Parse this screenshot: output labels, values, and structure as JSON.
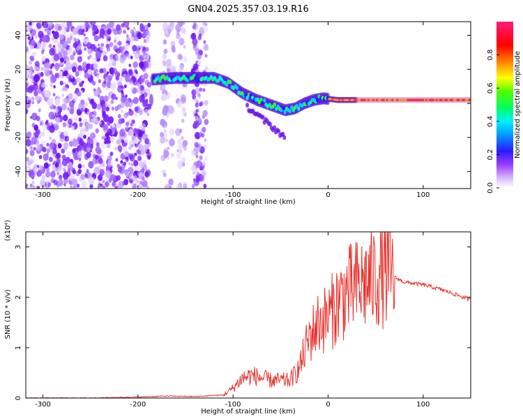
{
  "title": "GN04.2025.357.03.19.R16",
  "colors": {
    "snr_line": "#e8322c",
    "spectral_purple": "#7a1aff",
    "frame": "#000000"
  },
  "chart_data": [
    {
      "type": "heatmap",
      "title": "GN04.2025.357.03.19.R16",
      "xlabel": "Height of straight line (km)",
      "ylabel": "Frequency (Hz)",
      "xlim": [
        -318,
        150
      ],
      "ylim": [
        -50,
        48
      ],
      "xticks": [
        -300,
        -200,
        -100,
        0,
        100
      ],
      "yticks": [
        -40,
        -20,
        0,
        20,
        40
      ],
      "colorbar": {
        "label": "Normalized spectral amplitude",
        "range": [
          0.0,
          1.0
        ],
        "ticks": [
          0.0,
          0.2,
          0.4,
          0.6,
          0.8
        ]
      },
      "ridge": {
        "description": "dominant frequency trace",
        "x": [
          -185,
          -160,
          -140,
          -120,
          -105,
          -90,
          -75,
          -60,
          -45,
          -35,
          -25,
          -15,
          -5,
          10,
          40,
          70,
          100,
          150
        ],
        "y": [
          14,
          15,
          15,
          15,
          12,
          6,
          2,
          -1,
          -4,
          -3,
          0,
          2,
          3,
          2,
          2,
          2,
          2,
          2
        ]
      }
    },
    {
      "type": "line",
      "xlabel": "Height of straight line (km)",
      "ylabel": "SNR (10 * v/v)",
      "yscale_label": "(x10⁴)",
      "xlim": [
        -318,
        150
      ],
      "ylim": [
        0,
        3.3
      ],
      "xticks": [
        -300,
        -200,
        -100,
        0,
        100
      ],
      "yticks": [
        0,
        1,
        2,
        3
      ],
      "series": [
        {
          "name": "SNR",
          "x": [
            -318,
            -250,
            -200,
            -170,
            -140,
            -110,
            -100,
            -90,
            -80,
            -70,
            -60,
            -50,
            -40,
            -30,
            -20,
            -10,
            0,
            10,
            20,
            30,
            40,
            50,
            60,
            70,
            80,
            100,
            120,
            150
          ],
          "y": [
            0.0,
            0.0,
            0.02,
            0.04,
            0.03,
            0.06,
            0.2,
            0.4,
            0.45,
            0.4,
            0.35,
            0.35,
            0.35,
            0.6,
            1.2,
            1.5,
            1.6,
            1.9,
            2.1,
            2.2,
            2.3,
            2.4,
            2.5,
            2.4,
            2.3,
            2.25,
            2.15,
            1.95
          ]
        }
      ]
    }
  ]
}
